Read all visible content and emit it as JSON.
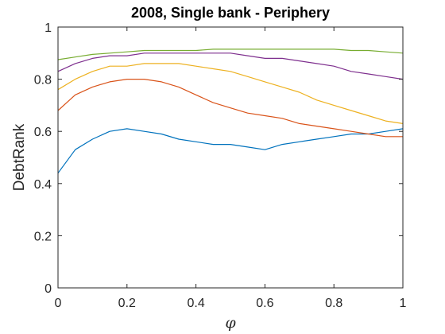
{
  "chart_data": {
    "type": "line",
    "title": "2008, Single bank - Periphery",
    "xlabel": "φ",
    "ylabel": "DebtRank",
    "xlim": [
      0,
      1
    ],
    "ylim": [
      0,
      1
    ],
    "xticks": [
      0,
      0.2,
      0.4,
      0.6,
      0.8,
      1
    ],
    "xtick_labels": [
      "0",
      "0.2",
      "0.4",
      "0.6",
      "0.8",
      "1"
    ],
    "yticks": [
      0,
      0.2,
      0.4,
      0.6,
      0.8,
      1
    ],
    "ytick_labels": [
      "0",
      "0.2",
      "0.4",
      "0.6",
      "0.8",
      "1"
    ],
    "grid": false,
    "legend": "none",
    "x": [
      0,
      0.05,
      0.1,
      0.15,
      0.2,
      0.25,
      0.3,
      0.35,
      0.4,
      0.45,
      0.5,
      0.55,
      0.6,
      0.65,
      0.7,
      0.75,
      0.8,
      0.85,
      0.9,
      0.95,
      1
    ],
    "series": [
      {
        "color": "#0072BD",
        "values": [
          0.44,
          0.53,
          0.57,
          0.6,
          0.61,
          0.6,
          0.59,
          0.57,
          0.56,
          0.55,
          0.55,
          0.54,
          0.53,
          0.55,
          0.56,
          0.57,
          0.58,
          0.59,
          0.59,
          0.6,
          0.61
        ]
      },
      {
        "color": "#D95319",
        "values": [
          0.68,
          0.74,
          0.77,
          0.79,
          0.8,
          0.8,
          0.79,
          0.77,
          0.74,
          0.71,
          0.69,
          0.67,
          0.66,
          0.65,
          0.63,
          0.62,
          0.61,
          0.6,
          0.59,
          0.58,
          0.58
        ]
      },
      {
        "color": "#EDB120",
        "values": [
          0.76,
          0.8,
          0.83,
          0.85,
          0.85,
          0.86,
          0.86,
          0.86,
          0.85,
          0.84,
          0.83,
          0.81,
          0.79,
          0.77,
          0.75,
          0.72,
          0.7,
          0.68,
          0.66,
          0.64,
          0.63
        ]
      },
      {
        "color": "#7E2F8E",
        "values": [
          0.83,
          0.86,
          0.88,
          0.89,
          0.89,
          0.9,
          0.9,
          0.9,
          0.9,
          0.9,
          0.9,
          0.89,
          0.88,
          0.88,
          0.87,
          0.86,
          0.85,
          0.83,
          0.82,
          0.81,
          0.8
        ]
      },
      {
        "color": "#77AC30",
        "values": [
          0.875,
          0.885,
          0.895,
          0.9,
          0.905,
          0.91,
          0.91,
          0.91,
          0.91,
          0.915,
          0.915,
          0.915,
          0.915,
          0.915,
          0.915,
          0.915,
          0.915,
          0.91,
          0.91,
          0.905,
          0.9
        ]
      }
    ]
  }
}
